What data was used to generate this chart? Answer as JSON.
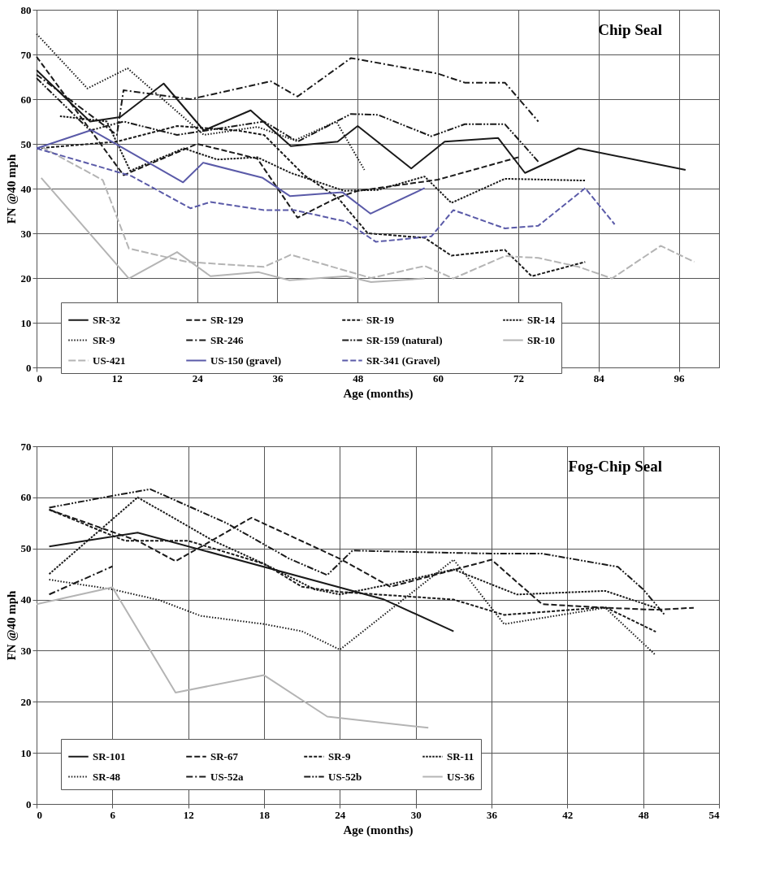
{
  "chart_data": [
    {
      "type": "line",
      "title": "Chip Seal",
      "xlabel": "Age (months)",
      "ylabel": "FN @40 mph",
      "xlim": [
        0,
        102
      ],
      "ylim": [
        0,
        80
      ],
      "xticks": [
        0,
        12,
        24,
        36,
        48,
        60,
        72,
        84,
        96
      ],
      "yticks": [
        0,
        10,
        20,
        30,
        40,
        50,
        60,
        70,
        80
      ],
      "grid": true,
      "legend": "bottom",
      "marker": "none",
      "series": [
        {
          "name": "SR-32",
          "color": "#1a1a1a",
          "line_style": "solid",
          "x": [
            0,
            8,
            12.5,
            19,
            25,
            32,
            38,
            45,
            48,
            56,
            61,
            69,
            73,
            81,
            97
          ],
          "values": [
            66.5,
            55,
            56,
            63.5,
            53,
            57.5,
            49.5,
            50.5,
            54,
            44.5,
            50.5,
            51.3,
            43.5,
            49,
            44.2
          ]
        },
        {
          "name": "SR-129",
          "color": "#1a1a1a",
          "line_style": "dashed",
          "x": [
            0,
            13,
            24,
            33,
            39,
            45,
            48,
            60,
            72
          ],
          "values": [
            69.5,
            43,
            50,
            46.7,
            33.5,
            38,
            39.5,
            42,
            47
          ]
        },
        {
          "name": "SR-19",
          "color": "#1a1a1a",
          "line_style": "dashed",
          "x": [
            0,
            12,
            21,
            30,
            34,
            40,
            45,
            49.5,
            58,
            62,
            70,
            74,
            82
          ],
          "values": [
            49,
            50.5,
            54,
            53,
            52,
            43,
            38,
            30,
            29,
            25,
            26.3,
            20.4,
            23.6
          ]
        },
        {
          "name": "SR-14",
          "color": "#1a1a1a",
          "line_style": "dashed",
          "x": [
            3.5,
            10.5,
            14,
            22,
            27,
            33,
            38,
            46,
            51,
            58,
            62,
            70,
            82
          ],
          "values": [
            56.2,
            55,
            44,
            49,
            46.5,
            47,
            43.5,
            39.5,
            39.7,
            42.7,
            36.8,
            42.2,
            41.8
          ]
        },
        {
          "name": "SR-9",
          "color": "#1a1a1a",
          "line_style": "dotted",
          "x": [
            0,
            7.6,
            13.6,
            25,
            33,
            38.6,
            44.8,
            49
          ],
          "values": [
            74.6,
            62.4,
            66.9,
            52,
            53.8,
            50.8,
            55,
            44.2
          ]
        },
        {
          "name": "SR-246",
          "color": "#1a1a1a",
          "line_style": "dashed",
          "x": [
            0,
            12,
            13,
            23,
            35,
            39,
            47,
            60,
            64,
            70,
            75
          ],
          "values": [
            65.5,
            52,
            62,
            60,
            64,
            60.6,
            69.2,
            65.7,
            63.7,
            63.7,
            55
          ]
        },
        {
          "name": "SR-159 (natural)",
          "color": "#1a1a1a",
          "line_style": "dashed",
          "x": [
            0,
            8,
            13,
            21,
            34,
            39,
            47,
            51,
            59,
            64,
            70,
            75
          ],
          "values": [
            64.7,
            53,
            55,
            52,
            55,
            50.5,
            56.7,
            56.5,
            51.7,
            54.4,
            54.4,
            46
          ]
        },
        {
          "name": "SR-10",
          "color": "#b4b4b4",
          "line_style": "solid",
          "x": [
            0.7,
            13.8,
            21,
            26,
            33.2,
            37.8,
            46.3,
            50,
            58
          ],
          "values": [
            42.4,
            19.9,
            25.8,
            20.4,
            21.3,
            19.5,
            20.4,
            19.1,
            19.9
          ]
        },
        {
          "name": "US-421",
          "color": "#b4b4b4",
          "line_style": "dashed",
          "x": [
            0.7,
            9.9,
            13.8,
            22.5,
            34,
            38,
            50,
            58,
            62.3,
            70,
            75,
            81,
            86,
            93.3,
            98.3
          ],
          "values": [
            49.4,
            41.9,
            26.6,
            23.6,
            22.5,
            25.2,
            20,
            22.7,
            19.9,
            24.9,
            24.5,
            22.5,
            19.9,
            27.2,
            23.6
          ]
        },
        {
          "name": "US-150 (gravel)",
          "color": "#5a5aa8",
          "line_style": "solid",
          "x": [
            0,
            8.2,
            21.9,
            24.9,
            33.8,
            37.9,
            45.7,
            49.9,
            58
          ],
          "values": [
            49,
            53.1,
            41.4,
            45.8,
            42.4,
            38.3,
            39.2,
            34.4,
            40.1
          ]
        },
        {
          "name": "SR-341 (Gravel)",
          "color": "#5a5aa8",
          "line_style": "dashed",
          "x": [
            0,
            14.2,
            23,
            26,
            34,
            38.5,
            46.3,
            50.7,
            59,
            62.3,
            70,
            75,
            82,
            86.4
          ],
          "values": [
            49,
            42.8,
            35.6,
            37,
            35.2,
            35.2,
            32.6,
            28.1,
            29.3,
            35.2,
            31.1,
            31.7,
            40.1,
            32
          ]
        }
      ]
    },
    {
      "type": "line",
      "title": "Fog-Chip Seal",
      "xlabel": "Age (months)",
      "ylabel": "FN @40 mph",
      "xlim": [
        0,
        54
      ],
      "ylim": [
        0,
        70
      ],
      "xticks": [
        0,
        6,
        12,
        18,
        24,
        30,
        36,
        42,
        48,
        54
      ],
      "yticks": [
        0,
        10,
        20,
        30,
        40,
        50,
        60,
        70
      ],
      "grid": true,
      "legend": "bottom",
      "marker": "none",
      "series": [
        {
          "name": "SR-101",
          "color": "#1a1a1a",
          "line_style": "solid",
          "x": [
            1,
            8,
            27.4,
            33
          ],
          "values": [
            50.4,
            53.1,
            40.1,
            33.8
          ]
        },
        {
          "name": "SR-67",
          "color": "#1a1a1a",
          "line_style": "dashed",
          "x": [
            1,
            8,
            11,
            17,
            24,
            28,
            36,
            40,
            45,
            49,
            52
          ],
          "values": [
            57.6,
            51.5,
            47.5,
            56,
            48,
            42.5,
            47.8,
            39.1,
            38.4,
            38,
            38.4
          ]
        },
        {
          "name": "SR-9",
          "color": "#1a1a1a",
          "line_style": "dashed",
          "x": [
            1,
            7,
            12,
            18,
            21,
            24,
            30,
            33,
            37,
            45,
            49
          ],
          "values": [
            57.6,
            51.5,
            51.5,
            47,
            42.5,
            41.5,
            40.5,
            40,
            37,
            38.5,
            33.7
          ]
        },
        {
          "name": "SR-11",
          "color": "#1a1a1a",
          "line_style": "dashed",
          "x": [
            1,
            8,
            14,
            18,
            22,
            24,
            28,
            33,
            38,
            45,
            49
          ],
          "values": [
            45,
            60,
            51.5,
            47,
            42,
            41,
            43,
            45.9,
            41,
            41.7,
            38.4
          ]
        },
        {
          "name": "SR-48",
          "color": "#1a1a1a",
          "line_style": "dotted",
          "x": [
            1,
            6,
            9.7,
            13,
            18,
            21,
            24,
            33,
            37,
            45,
            49
          ],
          "values": [
            43.9,
            42,
            39.9,
            36.8,
            35.2,
            33.8,
            30.2,
            47.8,
            35.2,
            38.4,
            29.1
          ]
        },
        {
          "name": "US-52a",
          "color": "#1a1a1a",
          "line_style": "dashed",
          "x": [
            1,
            6
          ],
          "values": [
            41,
            46.5
          ]
        },
        {
          "name": "US-52b",
          "color": "#1a1a1a",
          "line_style": "dashed",
          "x": [
            1,
            6,
            9,
            15,
            20,
            23,
            25,
            30,
            36,
            40,
            46,
            48,
            49.7
          ],
          "values": [
            58,
            60.3,
            61.6,
            55,
            48,
            44.8,
            49.6,
            49.3,
            49,
            49,
            46.4,
            42,
            37
          ]
        },
        {
          "name": "US-36",
          "color": "#b4b4b4",
          "line_style": "solid",
          "x": [
            0,
            6,
            11,
            18,
            23,
            31
          ],
          "values": [
            39.1,
            42.4,
            21.8,
            25.2,
            17.1,
            14.9
          ]
        }
      ]
    }
  ]
}
